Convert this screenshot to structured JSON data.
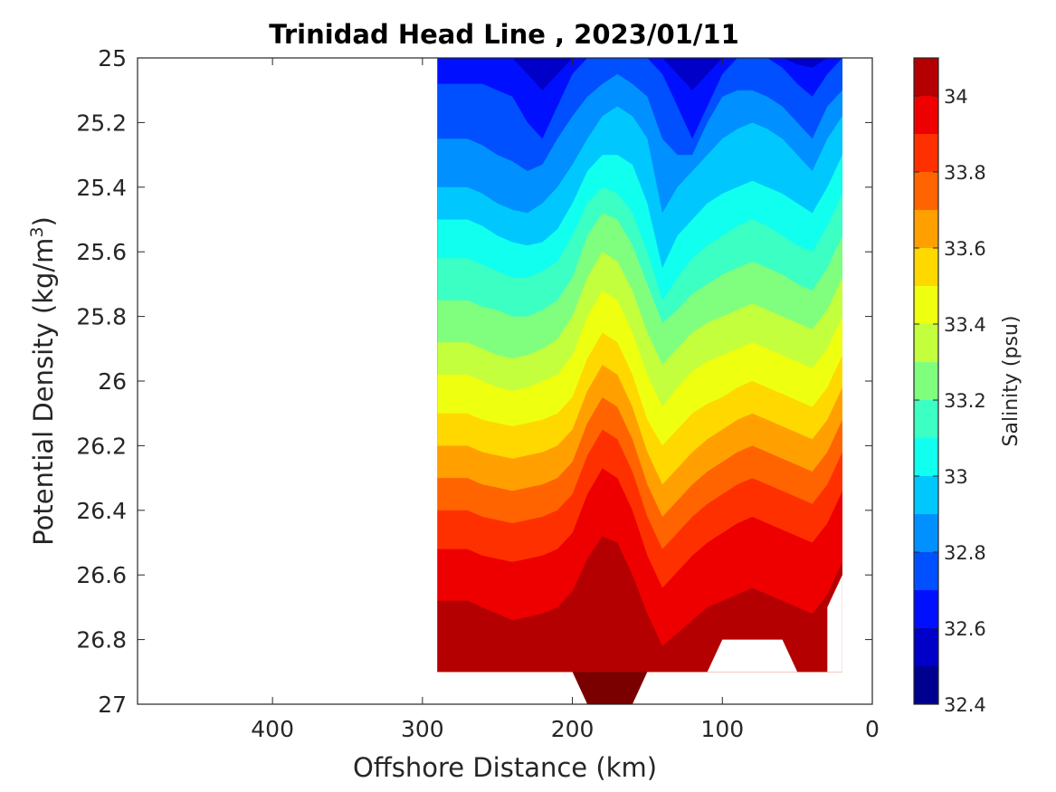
{
  "chart_data": {
    "type": "contour",
    "title": "Trinidad Head Line , 2023/01/11",
    "xlabel": "Offshore Distance (km)",
    "ylabel": "Potential Density (kg/m",
    "ylabel_sup": "3",
    "ylabel_suffix": ")",
    "x_reversed": true,
    "y_reversed": true,
    "xlim": [
      490,
      0
    ],
    "ylim": [
      25,
      27
    ],
    "x_ticks": [
      400,
      300,
      200,
      100,
      0
    ],
    "x_tick_labels": [
      "400",
      "300",
      "200",
      "100",
      "0"
    ],
    "y_ticks": [
      25,
      25.2,
      25.4,
      25.6,
      25.8,
      26,
      26.2,
      26.4,
      26.6,
      26.8,
      27
    ],
    "y_tick_labels": [
      "25",
      "25.2",
      "25.4",
      "25.6",
      "25.8",
      "26",
      "26.2",
      "26.4",
      "26.6",
      "26.8",
      "27"
    ],
    "colorbar": {
      "label": "Salinity (psu)",
      "range": [
        32.4,
        34.1
      ],
      "ticks": [
        32.4,
        32.6,
        32.8,
        33,
        33.2,
        33.4,
        33.6,
        33.8,
        34
      ],
      "tick_labels": [
        "32.4",
        "32.6",
        "32.8",
        "33",
        "33.2",
        "33.4",
        "33.6",
        "33.8",
        "34"
      ],
      "levels": [
        32.4,
        32.5,
        32.6,
        32.7,
        32.8,
        32.9,
        33.0,
        33.1,
        33.2,
        33.3,
        33.4,
        33.5,
        33.6,
        33.7,
        33.8,
        33.9,
        34.0,
        34.1
      ],
      "colors": [
        "#00008f",
        "#0000c8",
        "#0010ff",
        "#0050ff",
        "#0090ff",
        "#00c8ff",
        "#10ffef",
        "#3cffc3",
        "#80ff7f",
        "#c3ff3c",
        "#efff10",
        "#ffd800",
        "#ffa000",
        "#ff6400",
        "#ff3000",
        "#ee0000",
        "#b40000"
      ]
    },
    "data_extent_x": [
      290,
      20
    ],
    "grid": false,
    "contour_boundaries": {
      "x_km": [
        290,
        270,
        260,
        250,
        240,
        230,
        220,
        210,
        200,
        190,
        180,
        170,
        160,
        150,
        140,
        130,
        120,
        110,
        100,
        90,
        80,
        70,
        60,
        50,
        40,
        30,
        20
      ],
      "depths": [
        {
          "level": 32.5,
          "y": [
            25.0,
            25.0,
            25.0,
            25.0,
            25.0,
            25.0,
            25.0,
            25.0,
            25.0,
            25.0,
            25.0,
            25.0,
            25.0,
            25.0,
            25.0,
            25.0,
            25.0,
            25.0,
            25.0,
            25.0,
            25.0,
            25.0,
            25.0,
            25.0,
            25.0,
            25.0,
            25.0
          ]
        },
        {
          "level": 32.6,
          "y": [
            25.0,
            25.0,
            25.0,
            25.0,
            25.0,
            25.05,
            25.1,
            25.05,
            25.0,
            25.0,
            25.0,
            25.0,
            25.0,
            25.0,
            25.0,
            25.05,
            25.1,
            25.05,
            25.0,
            25.0,
            25.0,
            25.0,
            25.0,
            25.02,
            25.03,
            25.0,
            25.0
          ]
        },
        {
          "level": 32.7,
          "y": [
            25.08,
            25.08,
            25.08,
            25.1,
            25.12,
            25.2,
            25.25,
            25.15,
            25.05,
            25.0,
            25.0,
            25.0,
            25.0,
            25.0,
            25.05,
            25.15,
            25.25,
            25.15,
            25.05,
            25.0,
            25.0,
            25.0,
            25.03,
            25.08,
            25.12,
            25.05,
            25.0
          ]
        },
        {
          "level": 32.8,
          "y": [
            25.25,
            25.25,
            25.27,
            25.3,
            25.32,
            25.35,
            25.33,
            25.25,
            25.18,
            25.12,
            25.08,
            25.05,
            25.08,
            25.12,
            25.25,
            25.3,
            25.3,
            25.2,
            25.12,
            25.1,
            25.1,
            25.12,
            25.15,
            25.2,
            25.25,
            25.15,
            25.1
          ]
        },
        {
          "level": 32.9,
          "y": [
            25.4,
            25.4,
            25.42,
            25.45,
            25.47,
            25.48,
            25.45,
            25.4,
            25.33,
            25.25,
            25.18,
            25.15,
            25.18,
            25.25,
            25.48,
            25.4,
            25.35,
            25.3,
            25.25,
            25.22,
            25.2,
            25.22,
            25.25,
            25.3,
            25.35,
            25.25,
            25.18
          ]
        },
        {
          "level": 33.0,
          "y": [
            25.5,
            25.5,
            25.52,
            25.55,
            25.57,
            25.58,
            25.57,
            25.53,
            25.45,
            25.35,
            25.3,
            25.3,
            25.33,
            25.45,
            25.65,
            25.55,
            25.5,
            25.45,
            25.42,
            25.4,
            25.38,
            25.4,
            25.42,
            25.45,
            25.48,
            25.4,
            25.3
          ]
        },
        {
          "level": 33.1,
          "y": [
            25.62,
            25.62,
            25.64,
            25.66,
            25.68,
            25.68,
            25.66,
            25.63,
            25.55,
            25.45,
            25.4,
            25.42,
            25.48,
            25.6,
            25.75,
            25.68,
            25.62,
            25.58,
            25.55,
            25.52,
            25.5,
            25.52,
            25.55,
            25.58,
            25.6,
            25.52,
            25.42
          ]
        },
        {
          "level": 33.2,
          "y": [
            25.75,
            25.75,
            25.77,
            25.78,
            25.8,
            25.8,
            25.78,
            25.75,
            25.68,
            25.55,
            25.48,
            25.5,
            25.58,
            25.7,
            25.82,
            25.78,
            25.73,
            25.7,
            25.67,
            25.65,
            25.63,
            25.65,
            25.67,
            25.7,
            25.72,
            25.65,
            25.55
          ]
        },
        {
          "level": 33.3,
          "y": [
            25.88,
            25.88,
            25.9,
            25.92,
            25.93,
            25.92,
            25.9,
            25.87,
            25.8,
            25.68,
            25.6,
            25.63,
            25.72,
            25.85,
            25.95,
            25.9,
            25.85,
            25.82,
            25.8,
            25.78,
            25.76,
            25.78,
            25.8,
            25.82,
            25.84,
            25.78,
            25.68
          ]
        },
        {
          "level": 33.4,
          "y": [
            25.98,
            25.98,
            26.0,
            26.02,
            26.03,
            26.02,
            26.0,
            25.98,
            25.92,
            25.8,
            25.72,
            25.75,
            25.85,
            25.98,
            26.08,
            26.02,
            25.97,
            25.94,
            25.92,
            25.9,
            25.88,
            25.9,
            25.92,
            25.94,
            25.96,
            25.9,
            25.8
          ]
        },
        {
          "level": 33.5,
          "y": [
            26.1,
            26.1,
            26.12,
            26.13,
            26.14,
            26.13,
            26.12,
            26.1,
            26.05,
            25.93,
            25.85,
            25.88,
            25.98,
            26.12,
            26.2,
            26.15,
            26.1,
            26.07,
            26.05,
            26.02,
            26.0,
            26.02,
            26.04,
            26.06,
            26.08,
            26.02,
            25.92
          ]
        },
        {
          "level": 33.6,
          "y": [
            26.2,
            26.2,
            26.22,
            26.23,
            26.24,
            26.23,
            26.22,
            26.2,
            26.15,
            26.03,
            25.95,
            25.98,
            26.08,
            26.22,
            26.32,
            26.27,
            26.22,
            26.18,
            26.15,
            26.12,
            26.1,
            26.12,
            26.14,
            26.16,
            26.18,
            26.12,
            26.02
          ]
        },
        {
          "level": 33.7,
          "y": [
            26.3,
            26.3,
            26.32,
            26.33,
            26.34,
            26.33,
            26.32,
            26.3,
            26.25,
            26.13,
            26.05,
            26.08,
            26.18,
            26.32,
            26.42,
            26.37,
            26.32,
            26.28,
            26.25,
            26.22,
            26.2,
            26.22,
            26.24,
            26.26,
            26.28,
            26.22,
            26.12
          ]
        },
        {
          "level": 33.8,
          "y": [
            26.4,
            26.4,
            26.42,
            26.43,
            26.44,
            26.43,
            26.42,
            26.4,
            26.35,
            26.23,
            26.15,
            26.18,
            26.28,
            26.42,
            26.52,
            26.47,
            26.42,
            26.38,
            26.35,
            26.32,
            26.3,
            26.32,
            26.34,
            26.36,
            26.38,
            26.32,
            26.22
          ]
        },
        {
          "level": 33.9,
          "y": [
            26.52,
            26.52,
            26.54,
            26.55,
            26.56,
            26.55,
            26.54,
            26.52,
            26.47,
            26.35,
            26.27,
            26.3,
            26.4,
            26.54,
            26.64,
            26.59,
            26.54,
            26.5,
            26.47,
            26.44,
            26.42,
            26.44,
            26.46,
            26.48,
            26.5,
            26.44,
            26.34
          ]
        },
        {
          "level": 34.0,
          "y": [
            26.68,
            26.68,
            26.7,
            26.72,
            26.74,
            26.73,
            26.72,
            26.7,
            26.65,
            26.55,
            26.48,
            26.5,
            26.6,
            26.72,
            26.82,
            26.78,
            26.74,
            26.7,
            26.68,
            26.66,
            26.64,
            26.66,
            26.68,
            26.7,
            26.72,
            26.66,
            26.56
          ]
        }
      ]
    }
  }
}
